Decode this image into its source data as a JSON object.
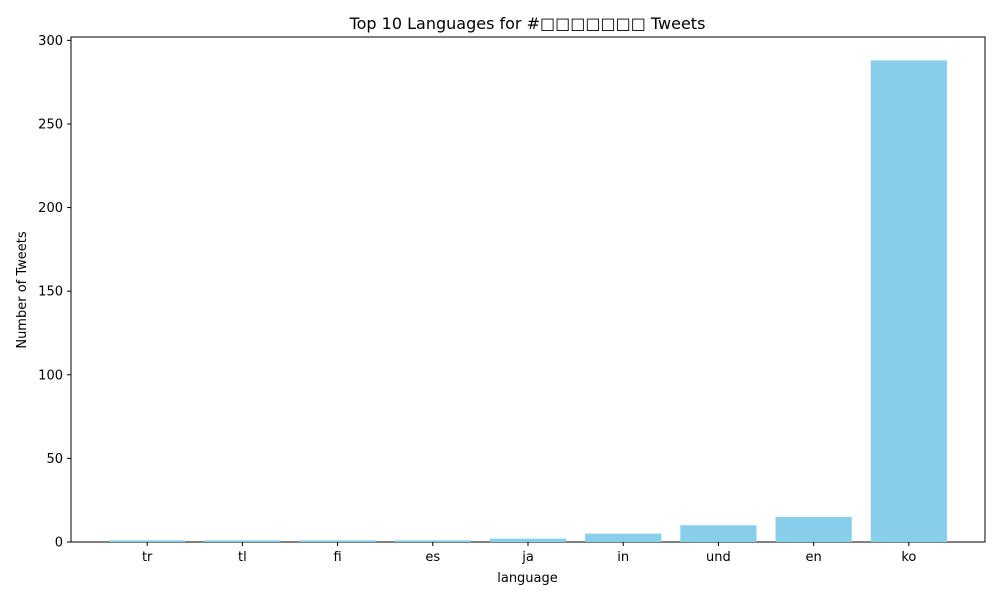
{
  "chart_data": {
    "type": "bar",
    "title": "Top 10 Languages for #□□□□□□□ Tweets",
    "xlabel": "language",
    "ylabel": "Number of Tweets",
    "categories": [
      "tr",
      "tl",
      "fi",
      "es",
      "ja",
      "in",
      "und",
      "en",
      "ko"
    ],
    "values": [
      1,
      1,
      1,
      1,
      2,
      5,
      10,
      15,
      288
    ],
    "ylim": [
      0,
      302
    ],
    "yticks": [
      0,
      50,
      100,
      150,
      200,
      250,
      300
    ],
    "bar_color": "#87ceeb",
    "grid": false,
    "legend": "none"
  }
}
